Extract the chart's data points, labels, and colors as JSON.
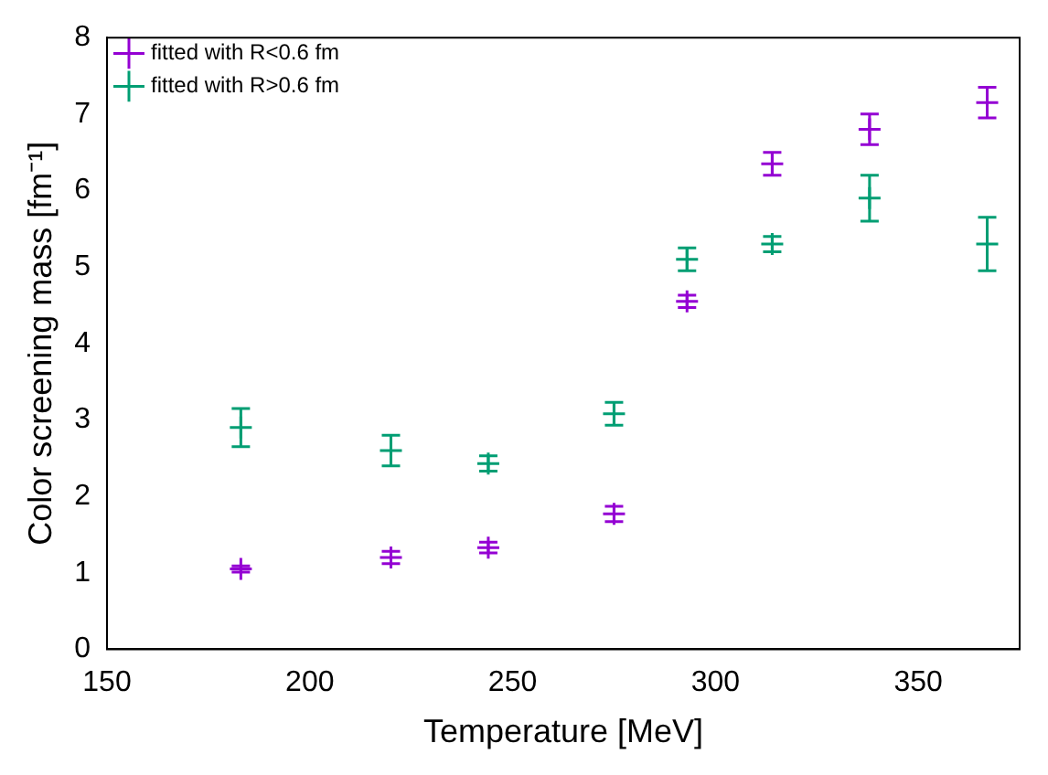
{
  "chart_data": {
    "type": "scatter",
    "xlabel": "Temperature [MeV]",
    "ylabel": "Color screening mass [fm⁻¹]",
    "xlim": [
      150,
      375
    ],
    "xticks": [
      150,
      200,
      250,
      300,
      350
    ],
    "ylim": [
      0,
      8
    ],
    "yticks": [
      0,
      1,
      2,
      3,
      4,
      5,
      6,
      7,
      8
    ],
    "grid": false,
    "legend": "top left",
    "marker": "cross",
    "x": [
      183,
      220,
      244,
      275,
      293,
      314,
      338,
      367
    ],
    "series": [
      {
        "name": "fitted with R<0.6 fm",
        "color": "#9400d3",
        "values": [
          1.05,
          1.2,
          1.33,
          1.77,
          4.55,
          6.35,
          6.8,
          7.15
        ],
        "errors": [
          0.04,
          0.08,
          0.07,
          0.1,
          0.08,
          0.15,
          0.2,
          0.2
        ]
      },
      {
        "name": "fitted with R>0.6 fm",
        "color": "#009e73",
        "values": [
          2.9,
          2.6,
          2.43,
          3.08,
          5.1,
          5.3,
          5.9,
          5.3
        ],
        "errors": [
          0.25,
          0.2,
          0.1,
          0.15,
          0.15,
          0.1,
          0.3,
          0.35
        ]
      }
    ]
  }
}
